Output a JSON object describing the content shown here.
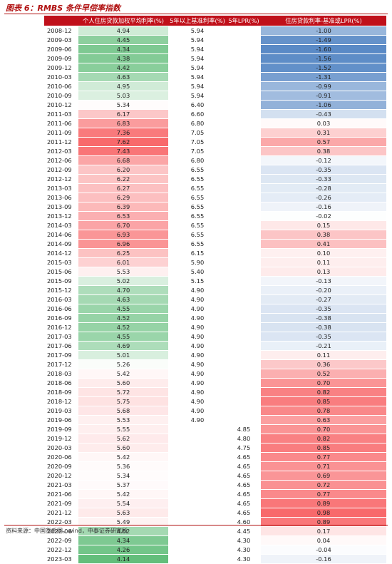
{
  "header": {
    "title": "图表 6：RMBS 条件早偿率指数"
  },
  "table": {
    "columns": [
      "个人住房贷款加权平均利率(%)",
      "5年以上基准利率(%)",
      "5年LPR(%)",
      "住房贷款利率-基准或LPR(%)"
    ],
    "rows": [
      [
        "2008-12",
        "4.94",
        "5.94",
        null,
        "-1.00"
      ],
      [
        "2009-03",
        "4.45",
        "5.94",
        null,
        "-1.49"
      ],
      [
        "2009-06",
        "4.34",
        "5.94",
        null,
        "-1.60"
      ],
      [
        "2009-09",
        "4.38",
        "5.94",
        null,
        "-1.56"
      ],
      [
        "2009-12",
        "4.42",
        "5.94",
        null,
        "-1.52"
      ],
      [
        "2010-03",
        "4.63",
        "5.94",
        null,
        "-1.31"
      ],
      [
        "2010-06",
        "4.95",
        "5.94",
        null,
        "-0.99"
      ],
      [
        "2010-09",
        "5.03",
        "5.94",
        null,
        "-0.91"
      ],
      [
        "2010-12",
        "5.34",
        "6.40",
        null,
        "-1.06"
      ],
      [
        "2011-03",
        "6.17",
        "6.60",
        null,
        "-0.43"
      ],
      [
        "2011-06",
        "6.83",
        "6.80",
        null,
        "0.03"
      ],
      [
        "2011-09",
        "7.36",
        "7.05",
        null,
        "0.31"
      ],
      [
        "2011-12",
        "7.62",
        "7.05",
        null,
        "0.57"
      ],
      [
        "2012-03",
        "7.43",
        "7.05",
        null,
        "0.38"
      ],
      [
        "2012-06",
        "6.68",
        "6.80",
        null,
        "-0.12"
      ],
      [
        "2012-09",
        "6.20",
        "6.55",
        null,
        "-0.35"
      ],
      [
        "2012-12",
        "6.22",
        "6.55",
        null,
        "-0.33"
      ],
      [
        "2013-03",
        "6.27",
        "6.55",
        null,
        "-0.28"
      ],
      [
        "2013-06",
        "6.29",
        "6.55",
        null,
        "-0.26"
      ],
      [
        "2013-09",
        "6.39",
        "6.55",
        null,
        "-0.16"
      ],
      [
        "2013-12",
        "6.53",
        "6.55",
        null,
        "-0.02"
      ],
      [
        "2014-03",
        "6.70",
        "6.55",
        null,
        "0.15"
      ],
      [
        "2014-06",
        "6.93",
        "6.55",
        null,
        "0.38"
      ],
      [
        "2014-09",
        "6.96",
        "6.55",
        null,
        "0.41"
      ],
      [
        "2014-12",
        "6.25",
        "6.15",
        null,
        "0.10"
      ],
      [
        "2015-03",
        "6.01",
        "5.90",
        null,
        "0.11"
      ],
      [
        "2015-06",
        "5.53",
        "5.40",
        null,
        "0.13"
      ],
      [
        "2015-09",
        "5.02",
        "5.15",
        null,
        "-0.13"
      ],
      [
        "2015-12",
        "4.70",
        "4.90",
        null,
        "-0.20"
      ],
      [
        "2016-03",
        "4.63",
        "4.90",
        null,
        "-0.27"
      ],
      [
        "2016-06",
        "4.55",
        "4.90",
        null,
        "-0.35"
      ],
      [
        "2016-09",
        "4.52",
        "4.90",
        null,
        "-0.38"
      ],
      [
        "2016-12",
        "4.52",
        "4.90",
        null,
        "-0.38"
      ],
      [
        "2017-03",
        "4.55",
        "4.90",
        null,
        "-0.35"
      ],
      [
        "2017-06",
        "4.69",
        "4.90",
        null,
        "-0.21"
      ],
      [
        "2017-09",
        "5.01",
        "4.90",
        null,
        "0.11"
      ],
      [
        "2017-12",
        "5.26",
        "4.90",
        null,
        "0.36"
      ],
      [
        "2018-03",
        "5.42",
        "4.90",
        null,
        "0.52"
      ],
      [
        "2018-06",
        "5.60",
        "4.90",
        null,
        "0.70"
      ],
      [
        "2018-09",
        "5.72",
        "4.90",
        null,
        "0.82"
      ],
      [
        "2018-12",
        "5.75",
        "4.90",
        null,
        "0.85"
      ],
      [
        "2019-03",
        "5.68",
        "4.90",
        null,
        "0.78"
      ],
      [
        "2019-06",
        "5.53",
        "4.90",
        null,
        "0.63"
      ],
      [
        "2019-09",
        "5.55",
        null,
        "4.85",
        "0.70"
      ],
      [
        "2019-12",
        "5.62",
        null,
        "4.80",
        "0.82"
      ],
      [
        "2020-03",
        "5.60",
        null,
        "4.75",
        "0.85"
      ],
      [
        "2020-06",
        "5.42",
        null,
        "4.65",
        "0.77"
      ],
      [
        "2020-09",
        "5.36",
        null,
        "4.65",
        "0.71"
      ],
      [
        "2020-12",
        "5.34",
        null,
        "4.65",
        "0.69"
      ],
      [
        "2021-03",
        "5.37",
        null,
        "4.65",
        "0.72"
      ],
      [
        "2021-06",
        "5.42",
        null,
        "4.65",
        "0.77"
      ],
      [
        "2021-09",
        "5.54",
        null,
        "4.65",
        "0.89"
      ],
      [
        "2021-12",
        "5.63",
        null,
        "4.65",
        "0.98"
      ],
      [
        "2022-03",
        "5.49",
        null,
        "4.60",
        "0.89"
      ],
      [
        "2022-06",
        "4.62",
        null,
        "4.45",
        "0.17"
      ],
      [
        "2022-09",
        "4.34",
        null,
        "4.30",
        "0.04"
      ],
      [
        "2022-12",
        "4.26",
        null,
        "4.30",
        "-0.04"
      ],
      [
        "2023-03",
        "4.14",
        null,
        "4.30",
        "-0.16"
      ]
    ]
  },
  "footer": {
    "source": "资料来源：中国货币网，wind，中泰证券研究所"
  }
}
